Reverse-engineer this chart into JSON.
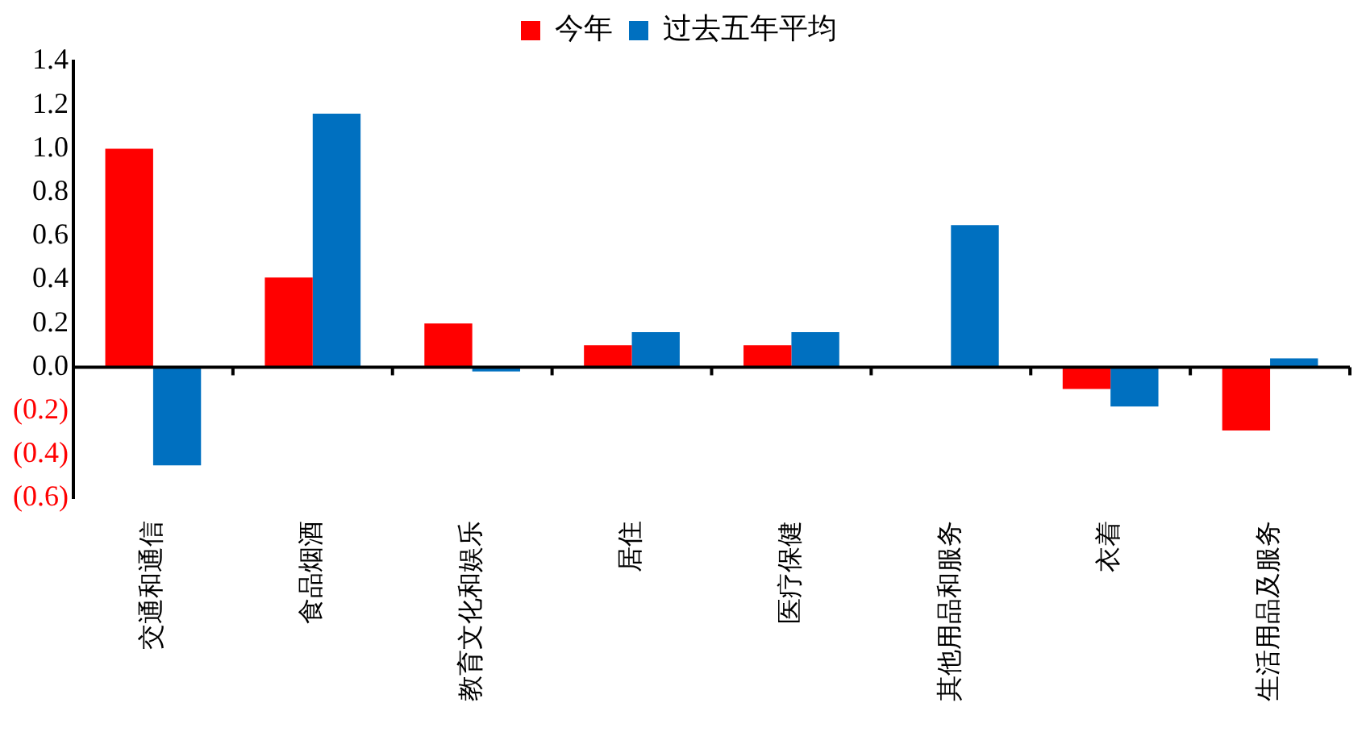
{
  "chart_data": {
    "type": "bar",
    "categories": [
      "交通和通信",
      "食品烟酒",
      "教育文化和娱乐",
      "居住",
      "医疗保健",
      "其他用品和服务",
      "衣着",
      "生活用品及服务"
    ],
    "series": [
      {
        "name": "今年",
        "color": "#ff0000",
        "values": [
          1.0,
          0.41,
          0.2,
          0.1,
          0.1,
          0,
          -0.1,
          -0.29
        ]
      },
      {
        "name": "过去五年平均",
        "color": "#0070c0",
        "values": [
          -0.45,
          1.16,
          -0.02,
          0.16,
          0.16,
          0.65,
          -0.18,
          0.04
        ]
      }
    ],
    "ylim": [
      -0.6,
      1.4
    ],
    "yticks": [
      {
        "value": -0.6,
        "label": "(0.6)"
      },
      {
        "value": -0.4,
        "label": "(0.4)"
      },
      {
        "value": -0.2,
        "label": "(0.2)"
      },
      {
        "value": 0,
        "label": "0.0"
      },
      {
        "value": 0.2,
        "label": "0.2"
      },
      {
        "value": 0.4,
        "label": "0.4"
      },
      {
        "value": 0.6,
        "label": "0.6"
      },
      {
        "value": 0.8,
        "label": "0.8"
      },
      {
        "value": 1.0,
        "label": "1.0"
      },
      {
        "value": 1.2,
        "label": "1.2"
      },
      {
        "value": 1.4,
        "label": "1.4"
      }
    ],
    "ref_lines": [
      {
        "axis": "y",
        "value": 0,
        "color": "#000000"
      }
    ],
    "grid": false,
    "legend": "top"
  }
}
